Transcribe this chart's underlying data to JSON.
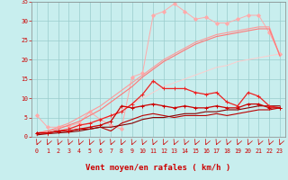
{
  "xlabel": "Vent moyen/en rafales ( km/h )",
  "xlim": [
    -0.5,
    23.5
  ],
  "ylim": [
    0,
    35
  ],
  "xticks": [
    0,
    1,
    2,
    3,
    4,
    5,
    6,
    7,
    8,
    9,
    10,
    11,
    12,
    13,
    14,
    15,
    16,
    17,
    18,
    19,
    20,
    21,
    22,
    23
  ],
  "yticks": [
    0,
    5,
    10,
    15,
    20,
    25,
    30,
    35
  ],
  "background_color": "#c8eeee",
  "grid_color": "#99cccc",
  "series": [
    {
      "x": [
        0,
        1,
        2,
        3,
        4,
        5,
        6,
        7,
        8,
        9,
        10,
        11,
        12,
        13,
        14,
        15,
        16,
        17,
        18,
        19,
        20,
        21,
        22,
        23
      ],
      "y": [
        5.5,
        2.5,
        2.5,
        2.8,
        3.5,
        6.5,
        4.5,
        3.0,
        2.0,
        15.5,
        16.5,
        31.5,
        32.5,
        34.5,
        32.5,
        30.5,
        31.0,
        29.5,
        29.5,
        30.5,
        31.5,
        31.5,
        27.0,
        21.5
      ],
      "color": "#ffaaaa",
      "linewidth": 0.7,
      "marker": "D",
      "markersize": 2.0,
      "zorder": 2,
      "linestyle": "-"
    },
    {
      "x": [
        0,
        1,
        2,
        3,
        4,
        5,
        6,
        7,
        8,
        9,
        10,
        11,
        12,
        13,
        14,
        15,
        16,
        17,
        18,
        19,
        20,
        21,
        22,
        23
      ],
      "y": [
        1.0,
        1.5,
        2.5,
        3.5,
        5.0,
        6.5,
        8.0,
        10.0,
        12.0,
        14.0,
        16.0,
        18.0,
        20.0,
        21.5,
        23.0,
        24.5,
        25.5,
        26.5,
        27.0,
        27.5,
        28.0,
        28.5,
        28.5,
        21.0
      ],
      "color": "#ff9999",
      "linewidth": 0.8,
      "marker": null,
      "markersize": 0,
      "zorder": 3,
      "linestyle": "-"
    },
    {
      "x": [
        0,
        1,
        2,
        3,
        4,
        5,
        6,
        7,
        8,
        9,
        10,
        11,
        12,
        13,
        14,
        15,
        16,
        17,
        18,
        19,
        20,
        21,
        22,
        23
      ],
      "y": [
        1.0,
        1.5,
        2.0,
        3.0,
        4.0,
        5.5,
        7.0,
        9.0,
        11.0,
        13.0,
        15.5,
        17.5,
        19.5,
        21.0,
        22.5,
        24.0,
        25.0,
        26.0,
        26.5,
        27.0,
        27.5,
        28.0,
        28.0,
        21.0
      ],
      "color": "#ff7777",
      "linewidth": 0.8,
      "marker": null,
      "markersize": 0,
      "zorder": 3,
      "linestyle": "-"
    },
    {
      "x": [
        0,
        1,
        2,
        3,
        4,
        5,
        6,
        7,
        8,
        9,
        10,
        11,
        12,
        13,
        14,
        15,
        16,
        17,
        18,
        19,
        20,
        21,
        22,
        23
      ],
      "y": [
        0.5,
        1.0,
        1.5,
        2.0,
        2.5,
        3.5,
        4.5,
        5.5,
        7.0,
        8.5,
        10.0,
        11.5,
        13.0,
        14.0,
        15.0,
        16.0,
        17.0,
        18.0,
        18.5,
        19.5,
        20.0,
        20.5,
        21.0,
        21.5
      ],
      "color": "#ffcccc",
      "linewidth": 0.7,
      "marker": null,
      "markersize": 0,
      "zorder": 2,
      "linestyle": "-"
    },
    {
      "x": [
        0,
        1,
        2,
        3,
        4,
        5,
        6,
        7,
        8,
        9,
        10,
        11,
        12,
        13,
        14,
        15,
        16,
        17,
        18,
        19,
        20,
        21,
        22,
        23
      ],
      "y": [
        1.0,
        1.0,
        1.5,
        2.0,
        3.0,
        3.5,
        4.5,
        5.5,
        6.5,
        8.5,
        11.0,
        14.5,
        12.5,
        12.5,
        12.5,
        11.5,
        11.0,
        11.5,
        9.0,
        8.0,
        11.5,
        10.5,
        8.0,
        7.5
      ],
      "color": "#ee2222",
      "linewidth": 0.9,
      "marker": "+",
      "markersize": 3.0,
      "zorder": 4,
      "linestyle": "-"
    },
    {
      "x": [
        0,
        1,
        2,
        3,
        4,
        5,
        6,
        7,
        8,
        9,
        10,
        11,
        12,
        13,
        14,
        15,
        16,
        17,
        18,
        19,
        20,
        21,
        22,
        23
      ],
      "y": [
        1.0,
        1.0,
        1.5,
        1.5,
        2.0,
        2.5,
        3.0,
        4.0,
        8.0,
        7.5,
        8.0,
        8.5,
        8.0,
        7.5,
        8.0,
        7.5,
        7.5,
        8.0,
        7.5,
        7.5,
        8.5,
        8.5,
        7.5,
        7.5
      ],
      "color": "#cc0000",
      "linewidth": 0.9,
      "marker": "+",
      "markersize": 3.0,
      "zorder": 4,
      "linestyle": "-"
    },
    {
      "x": [
        0,
        1,
        2,
        3,
        4,
        5,
        6,
        7,
        8,
        9,
        10,
        11,
        12,
        13,
        14,
        15,
        16,
        17,
        18,
        19,
        20,
        21,
        22,
        23
      ],
      "y": [
        1.0,
        1.0,
        1.5,
        1.5,
        2.0,
        2.0,
        2.5,
        1.5,
        3.5,
        4.5,
        5.5,
        6.0,
        5.5,
        5.0,
        5.5,
        5.5,
        5.5,
        6.0,
        5.5,
        6.0,
        6.5,
        7.0,
        7.0,
        7.5
      ],
      "color": "#bb0000",
      "linewidth": 0.8,
      "marker": null,
      "markersize": 0,
      "zorder": 3,
      "linestyle": "-"
    },
    {
      "x": [
        0,
        1,
        2,
        3,
        4,
        5,
        6,
        7,
        8,
        9,
        10,
        11,
        12,
        13,
        14,
        15,
        16,
        17,
        18,
        19,
        20,
        21,
        22,
        23
      ],
      "y": [
        0.5,
        0.8,
        1.0,
        1.2,
        1.5,
        2.0,
        2.5,
        2.5,
        3.0,
        3.5,
        4.5,
        5.0,
        5.0,
        5.5,
        6.0,
        6.0,
        6.5,
        6.5,
        7.0,
        7.0,
        7.5,
        8.0,
        8.0,
        8.0
      ],
      "color": "#880000",
      "linewidth": 0.8,
      "marker": null,
      "markersize": 0,
      "zorder": 3,
      "linestyle": "-"
    }
  ],
  "arrow_color": "#cc0000",
  "tick_color": "#cc0000",
  "label_color": "#cc0000",
  "xlabel_fontsize": 6.5,
  "tick_fontsize": 4.8
}
